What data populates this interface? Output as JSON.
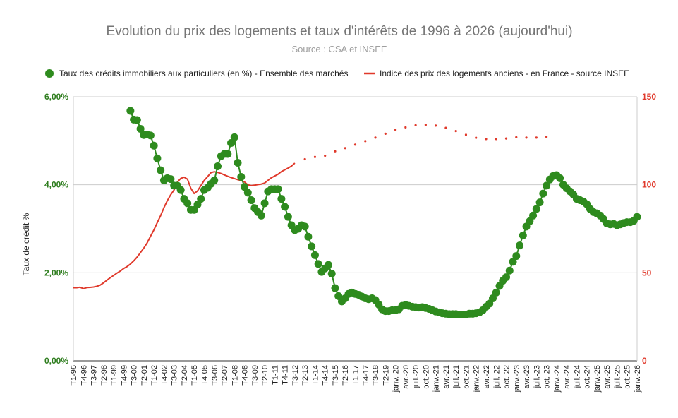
{
  "chart_data": {
    "type": "line",
    "title": "Evolution du prix des logements et taux d'intérêts de 1996 à 2026 (aujourd'hui)",
    "subtitle": "Source : CSA et INSEE",
    "legend_position": "top",
    "grid": true,
    "y_left": {
      "label": "Taux de crédit %",
      "range": [
        0,
        6
      ],
      "ticks": [
        "0,00%",
        "2,00%",
        "4,00%",
        "6,00%"
      ],
      "values": [
        0,
        2,
        4,
        6
      ]
    },
    "y_right": {
      "label": "",
      "range": [
        0,
        150
      ],
      "ticks": [
        "0",
        "50",
        "100",
        "150"
      ],
      "values": [
        0,
        50,
        100,
        150
      ]
    },
    "x_tick_labels": [
      "T1-96",
      "T4-96",
      "T3-97",
      "T2-98",
      "T1-99",
      "T4-99",
      "T3-00",
      "T2-01",
      "T1-02",
      "T4-02",
      "T3-03",
      "T2-04",
      "T1-05",
      "T4-05",
      "T3-06",
      "T2-07",
      "T1-08",
      "T4-08",
      "T3-09",
      "T2-10",
      "T1-11",
      "T4-11",
      "T3-12",
      "T2-13",
      "T1-14",
      "T4-14",
      "T3-15",
      "T2-16",
      "T1-17",
      "T4-17",
      "T3-18",
      "T2-19",
      "janv.-20",
      "avr.-20",
      "juil.-20",
      "oct.-20",
      "janv.-21",
      "avr.-21",
      "juil.-21",
      "oct.-21",
      "janv.-22",
      "avr.-22",
      "juil.-22",
      "oct.-22",
      "janv.-23",
      "avr.-23",
      "juil.-23",
      "oct.-23",
      "janv.-24",
      "avr.-24",
      "juil.-24",
      "oct.-24",
      "janv.-25",
      "avr.-25",
      "juil.-25",
      "oct.-25",
      "janv.-26"
    ],
    "x_tick_index": [
      0,
      3,
      6,
      9,
      12,
      15,
      18,
      21,
      24,
      27,
      30,
      33,
      36,
      39,
      42,
      45,
      48,
      51,
      54,
      57,
      60,
      63,
      66,
      69,
      72,
      75,
      78,
      81,
      84,
      87,
      90,
      93,
      96,
      99,
      102,
      105,
      108,
      111,
      114,
      117,
      120,
      123,
      126,
      129,
      132,
      135,
      138,
      141,
      144,
      147,
      150,
      153,
      156,
      159,
      162,
      165,
      168
    ],
    "x_count": 169,
    "series": [
      {
        "name": "Taux des crédits immobiliers aux particuliers (en %) - Ensemble des marchés",
        "axis": "left",
        "color": "#2e8b1e",
        "style": "line-markers",
        "points": [
          [
            17,
            5.68
          ],
          [
            18,
            5.48
          ],
          [
            19,
            5.47
          ],
          [
            20,
            5.27
          ],
          [
            21,
            5.13
          ],
          [
            22,
            5.14
          ],
          [
            23,
            5.12
          ],
          [
            24,
            4.89
          ],
          [
            25,
            4.6
          ],
          [
            26,
            4.33
          ],
          [
            27,
            4.1
          ],
          [
            28,
            4.15
          ],
          [
            29,
            4.13
          ],
          [
            30,
            3.98
          ],
          [
            31,
            3.98
          ],
          [
            32,
            3.88
          ],
          [
            33,
            3.68
          ],
          [
            34,
            3.58
          ],
          [
            35,
            3.43
          ],
          [
            36,
            3.43
          ],
          [
            37,
            3.55
          ],
          [
            38,
            3.68
          ],
          [
            39,
            3.88
          ],
          [
            40,
            3.93
          ],
          [
            41,
            4.02
          ],
          [
            42,
            4.1
          ],
          [
            43,
            4.42
          ],
          [
            44,
            4.65
          ],
          [
            45,
            4.7
          ],
          [
            46,
            4.7
          ],
          [
            47,
            4.95
          ],
          [
            48,
            5.08
          ],
          [
            49,
            4.5
          ],
          [
            50,
            4.18
          ],
          [
            51,
            3.95
          ],
          [
            52,
            3.82
          ],
          [
            53,
            3.65
          ],
          [
            54,
            3.47
          ],
          [
            55,
            3.38
          ],
          [
            56,
            3.3
          ],
          [
            57,
            3.58
          ],
          [
            58,
            3.85
          ],
          [
            59,
            3.9
          ],
          [
            60,
            3.9
          ],
          [
            61,
            3.9
          ],
          [
            62,
            3.68
          ],
          [
            63,
            3.5
          ],
          [
            64,
            3.27
          ],
          [
            65,
            3.08
          ],
          [
            66,
            2.97
          ],
          [
            67,
            3.0
          ],
          [
            68,
            3.08
          ],
          [
            69,
            3.05
          ],
          [
            70,
            2.82
          ],
          [
            71,
            2.6
          ],
          [
            72,
            2.4
          ],
          [
            73,
            2.2
          ],
          [
            74,
            2.02
          ],
          [
            75,
            2.1
          ],
          [
            76,
            2.18
          ],
          [
            77,
            1.98
          ],
          [
            78,
            1.65
          ],
          [
            79,
            1.47
          ],
          [
            80,
            1.35
          ],
          [
            81,
            1.42
          ],
          [
            82,
            1.52
          ],
          [
            83,
            1.55
          ],
          [
            84,
            1.52
          ],
          [
            85,
            1.5
          ],
          [
            86,
            1.46
          ],
          [
            87,
            1.42
          ],
          [
            88,
            1.4
          ],
          [
            89,
            1.42
          ],
          [
            90,
            1.38
          ],
          [
            91,
            1.28
          ],
          [
            92,
            1.17
          ],
          [
            93,
            1.13
          ],
          [
            94,
            1.13
          ],
          [
            95,
            1.15
          ],
          [
            96,
            1.15
          ],
          [
            97,
            1.17
          ],
          [
            98,
            1.25
          ],
          [
            99,
            1.27
          ],
          [
            100,
            1.25
          ],
          [
            101,
            1.23
          ],
          [
            102,
            1.22
          ],
          [
            103,
            1.21
          ],
          [
            104,
            1.22
          ],
          [
            105,
            1.2
          ],
          [
            106,
            1.18
          ],
          [
            107,
            1.15
          ],
          [
            108,
            1.12
          ],
          [
            109,
            1.1
          ],
          [
            110,
            1.08
          ],
          [
            111,
            1.07
          ],
          [
            112,
            1.06
          ],
          [
            113,
            1.06
          ],
          [
            114,
            1.06
          ],
          [
            115,
            1.05
          ],
          [
            116,
            1.05
          ],
          [
            117,
            1.05
          ],
          [
            118,
            1.07
          ],
          [
            119,
            1.07
          ],
          [
            120,
            1.08
          ],
          [
            121,
            1.1
          ],
          [
            122,
            1.15
          ],
          [
            123,
            1.23
          ],
          [
            124,
            1.3
          ],
          [
            125,
            1.42
          ],
          [
            126,
            1.55
          ],
          [
            127,
            1.7
          ],
          [
            128,
            1.82
          ],
          [
            129,
            1.9
          ],
          [
            130,
            2.05
          ],
          [
            131,
            2.25
          ],
          [
            132,
            2.38
          ],
          [
            133,
            2.62
          ],
          [
            134,
            2.85
          ],
          [
            135,
            3.05
          ],
          [
            136,
            3.17
          ],
          [
            137,
            3.3
          ],
          [
            138,
            3.45
          ],
          [
            139,
            3.6
          ],
          [
            140,
            3.8
          ],
          [
            141,
            3.98
          ],
          [
            142,
            4.12
          ],
          [
            143,
            4.2
          ],
          [
            144,
            4.22
          ],
          [
            145,
            4.15
          ],
          [
            146,
            4.0
          ],
          [
            147,
            3.92
          ],
          [
            148,
            3.85
          ],
          [
            149,
            3.78
          ],
          [
            150,
            3.68
          ],
          [
            151,
            3.65
          ],
          [
            152,
            3.62
          ],
          [
            153,
            3.56
          ],
          [
            154,
            3.45
          ],
          [
            155,
            3.38
          ],
          [
            156,
            3.35
          ],
          [
            157,
            3.3
          ],
          [
            158,
            3.22
          ],
          [
            159,
            3.12
          ],
          [
            160,
            3.1
          ],
          [
            161,
            3.11
          ],
          [
            162,
            3.08
          ],
          [
            163,
            3.1
          ],
          [
            164,
            3.13
          ],
          [
            165,
            3.15
          ],
          [
            166,
            3.15
          ],
          [
            167,
            3.18
          ],
          [
            168,
            3.27
          ]
        ]
      },
      {
        "name": "Indice des prix des logements anciens - en France - source INSEE",
        "axis": "right",
        "color": "#e0392b",
        "style": "line",
        "points": [
          [
            0,
            41.5
          ],
          [
            1,
            41.5
          ],
          [
            2,
            41.8
          ],
          [
            3,
            41.0
          ],
          [
            4,
            41.6
          ],
          [
            5,
            41.7
          ],
          [
            6,
            41.9
          ],
          [
            7,
            42.3
          ],
          [
            8,
            43.0
          ],
          [
            9,
            44.3
          ],
          [
            10,
            45.8
          ],
          [
            11,
            47.2
          ],
          [
            12,
            48.5
          ],
          [
            13,
            49.8
          ],
          [
            14,
            51.0
          ],
          [
            15,
            52.4
          ],
          [
            16,
            53.5
          ],
          [
            17,
            55.0
          ],
          [
            18,
            56.8
          ],
          [
            19,
            58.9
          ],
          [
            20,
            61.5
          ],
          [
            21,
            64.1
          ],
          [
            22,
            67.0
          ],
          [
            23,
            70.8
          ],
          [
            24,
            74.3
          ],
          [
            25,
            78.5
          ],
          [
            26,
            82.5
          ],
          [
            27,
            87.0
          ],
          [
            28,
            91.0
          ],
          [
            29,
            94.3
          ],
          [
            30,
            97.0
          ],
          [
            31,
            101.5
          ],
          [
            32,
            103.6
          ],
          [
            33,
            104.3
          ],
          [
            34,
            103.2
          ],
          [
            35,
            98.0
          ],
          [
            36,
            95.0
          ],
          [
            37,
            96.5
          ],
          [
            38,
            99.5
          ],
          [
            39,
            102.5
          ],
          [
            40,
            104.6
          ],
          [
            41,
            106.9
          ],
          [
            42,
            107.4
          ],
          [
            43,
            107.0
          ],
          [
            44,
            106.4
          ],
          [
            45,
            105.6
          ],
          [
            46,
            104.8
          ],
          [
            47,
            104.1
          ],
          [
            48,
            103.5
          ],
          [
            49,
            102.9
          ],
          [
            50,
            102.4
          ],
          [
            51,
            101.6
          ],
          [
            52,
            100.0
          ],
          [
            53,
            99.5
          ],
          [
            54,
            99.8
          ],
          [
            55,
            100.1
          ],
          [
            56,
            100.4
          ],
          [
            57,
            101.0
          ],
          [
            58,
            102.5
          ],
          [
            59,
            104.0
          ],
          [
            60,
            105.0
          ],
          [
            61,
            106.0
          ],
          [
            62,
            107.5
          ],
          [
            63,
            108.5
          ],
          [
            64,
            109.5
          ],
          [
            65,
            110.6
          ],
          [
            66,
            112.3
          ]
        ]
      },
      {
        "name": "",
        "axis": "right",
        "color": "#e0392b",
        "style": "dotted",
        "points": [
          [
            69,
            114.5
          ],
          [
            72,
            115.8
          ],
          [
            75,
            116.5
          ],
          [
            78,
            119.0
          ],
          [
            81,
            120.8
          ],
          [
            84,
            122.8
          ],
          [
            87,
            124.8
          ],
          [
            90,
            126.8
          ],
          [
            93,
            129.0
          ],
          [
            96,
            131.2
          ],
          [
            99,
            132.6
          ],
          [
            102,
            133.8
          ],
          [
            105,
            134.0
          ],
          [
            108,
            133.6
          ],
          [
            111,
            132.3
          ],
          [
            114,
            130.5
          ],
          [
            117,
            128.4
          ],
          [
            120,
            126.7
          ],
          [
            123,
            126.0
          ],
          [
            126,
            126.0
          ],
          [
            129,
            126.3
          ],
          [
            132,
            127.0
          ],
          [
            135,
            126.8
          ],
          [
            138,
            126.8
          ],
          [
            141,
            127.2
          ]
        ]
      }
    ]
  }
}
